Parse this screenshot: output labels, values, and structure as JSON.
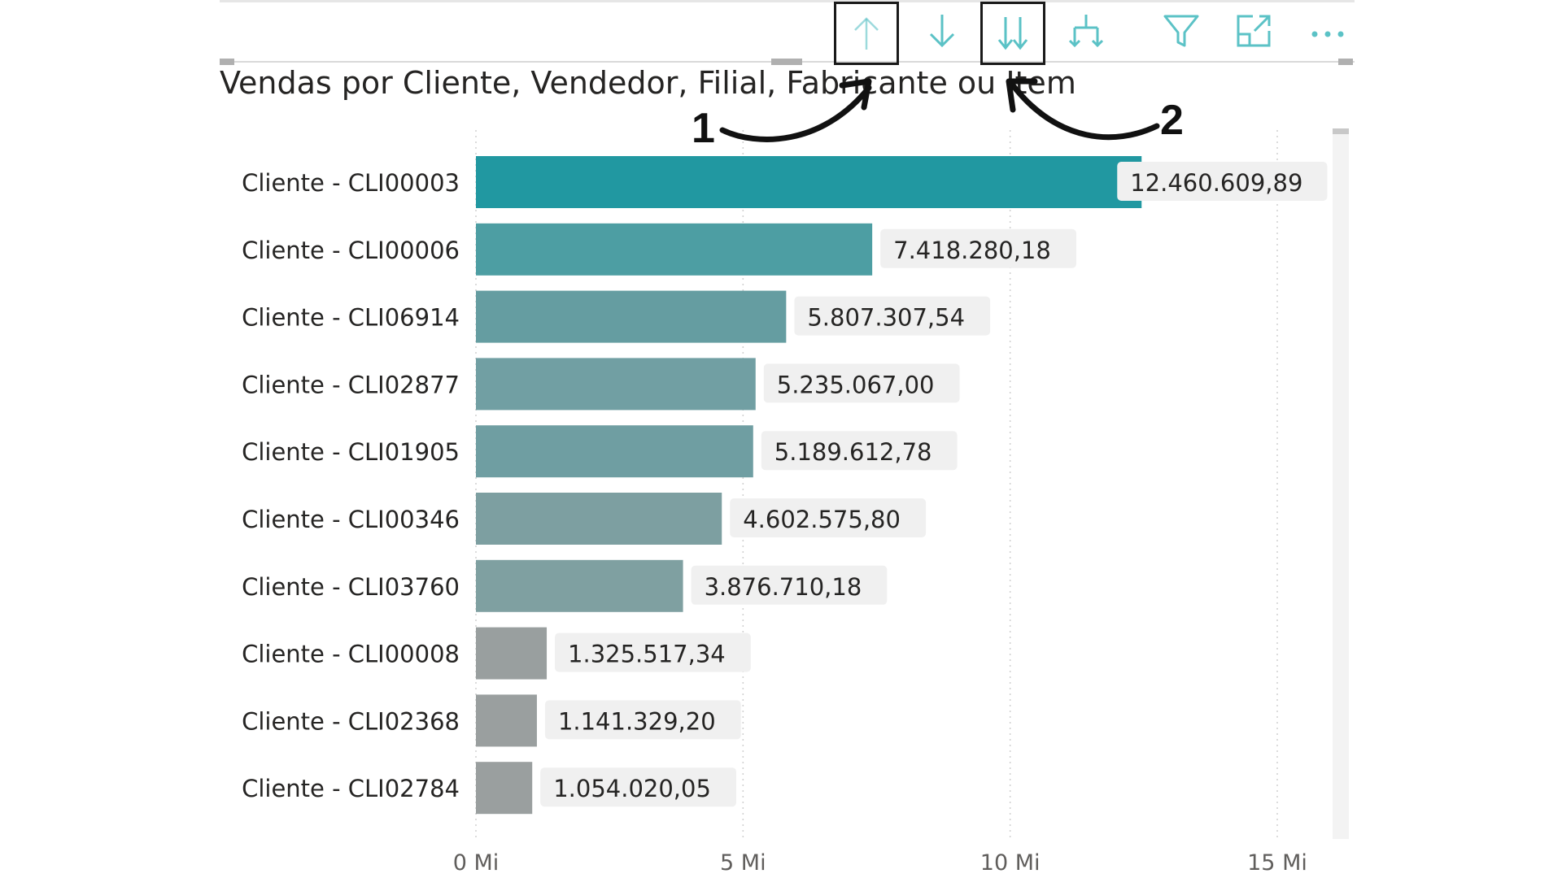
{
  "visual": {
    "title": "Vendas por Cliente, Vendedor, Filial, Fabricante ou Item",
    "annotations": [
      "1",
      "2"
    ],
    "toolbar": [
      {
        "name": "drill-up-icon"
      },
      {
        "name": "drill-down-icon"
      },
      {
        "name": "expand-next-level-icon"
      },
      {
        "name": "expand-hierarchy-icon"
      },
      {
        "name": "filter-icon"
      },
      {
        "name": "focus-mode-icon"
      },
      {
        "name": "more-options-icon"
      }
    ],
    "toolbar_color": "#5bc2c6"
  },
  "chart_data": {
    "type": "bar",
    "orientation": "horizontal",
    "categories": [
      "Cliente - CLI00003",
      "Cliente - CLI00006",
      "Cliente - CLI06914",
      "Cliente - CLI02877",
      "Cliente - CLI01905",
      "Cliente - CLI00346",
      "Cliente - CLI03760",
      "Cliente - CLI00008",
      "Cliente - CLI02368",
      "Cliente - CLI02784"
    ],
    "values": [
      12460609.89,
      7418280.18,
      5807307.54,
      5235067.0,
      5189612.78,
      4602575.8,
      3876710.18,
      1325517.34,
      1141329.2,
      1054020.05
    ],
    "value_labels": [
      "12.460.609,89",
      "7.418.280,18",
      "5.807.307,54",
      "5.235.067,00",
      "5.189.612,78",
      "4.602.575,80",
      "3.876.710,18",
      "1.325.517,34",
      "1.141.329,20",
      "1.054.020,05"
    ],
    "bar_colors": [
      "#2198a1",
      "#4d9ea3",
      "#659da1",
      "#719fa3",
      "#6f9ea2",
      "#7d9fa1",
      "#7fa0a1",
      "#999f9f",
      "#9a9f9f",
      "#9a9f9f"
    ],
    "xlim": [
      0,
      15000000
    ],
    "xticks": [
      0,
      5000000,
      10000000,
      15000000
    ],
    "xtick_labels": [
      "0 Mi",
      "5 Mi",
      "10 Mi",
      "15 Mi"
    ],
    "title": "Vendas por Cliente, Vendedor, Filial, Fabricante ou Item",
    "xlabel": "",
    "ylabel": "",
    "grid": "vertical-dotted",
    "legend": "none"
  }
}
